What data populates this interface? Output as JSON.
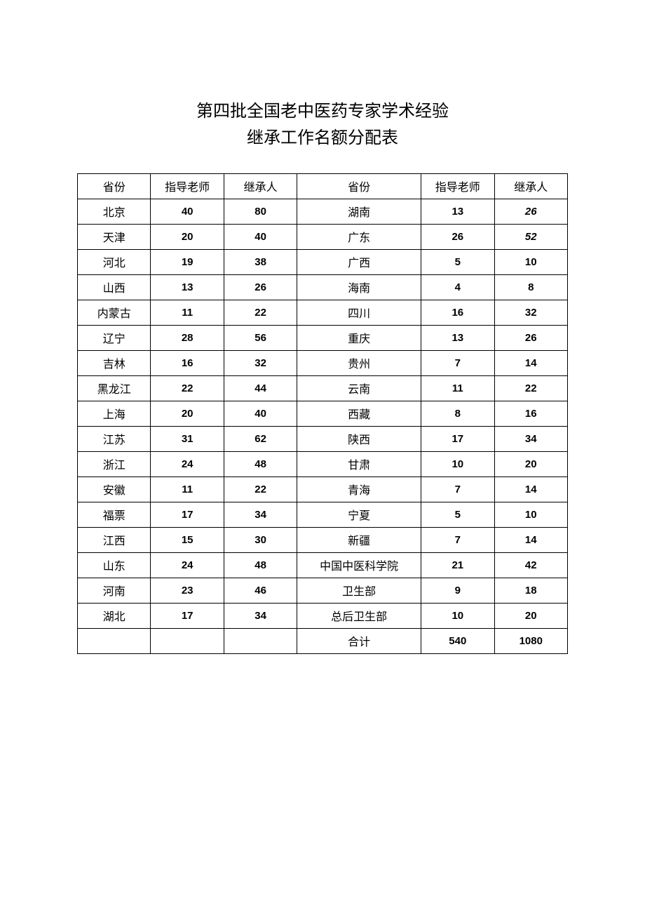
{
  "title": {
    "line1": "第四批全国老中医药专家学术经验",
    "line2": "继承工作名额分配表"
  },
  "headers": {
    "province": "省份",
    "advisor": "指导老师",
    "successor": "继承人"
  },
  "rows": [
    {
      "p1": "北京",
      "a1": "40",
      "s1": "80",
      "p2": "湖南",
      "a2": "13",
      "s2": "26",
      "s2_italic": true
    },
    {
      "p1": "天津",
      "a1": "20",
      "s1": "40",
      "p2": "广东",
      "a2": "26",
      "s2": "52",
      "s2_italic": true
    },
    {
      "p1": "河北",
      "a1": "19",
      "s1": "38",
      "p2": "广西",
      "a2": "5",
      "s2": "10"
    },
    {
      "p1": "山西",
      "a1": "13",
      "s1": "26",
      "p2": "海南",
      "a2": "4",
      "s2": "8"
    },
    {
      "p1": "内蒙古",
      "a1": "11",
      "s1": "22",
      "p2": "四川",
      "a2": "16",
      "s2": "32"
    },
    {
      "p1": "辽宁",
      "a1": "28",
      "s1": "56",
      "p2": "重庆",
      "a2": "13",
      "s2": "26"
    },
    {
      "p1": "吉林",
      "a1": "16",
      "s1": "32",
      "p2": "贵州",
      "a2": "7",
      "s2": "14"
    },
    {
      "p1": "黑龙江",
      "a1": "22",
      "s1": "44",
      "p2": "云南",
      "a2": "11",
      "s2": "22"
    },
    {
      "p1": "上海",
      "a1": "20",
      "s1": "40",
      "p2": "西藏",
      "a2": "8",
      "s2": "16"
    },
    {
      "p1": "江苏",
      "a1": "31",
      "s1": "62",
      "p2": "陕西",
      "a2": "17",
      "s2": "34"
    },
    {
      "p1": "浙江",
      "a1": "24",
      "s1": "48",
      "p2": "甘肃",
      "a2": "10",
      "s2": "20"
    },
    {
      "p1": "安徽",
      "a1": "11",
      "s1": "22",
      "p2": "青海",
      "a2": "7",
      "s2": "14"
    },
    {
      "p1": "福票",
      "a1": "17",
      "s1": "34",
      "p2": "宁夏",
      "a2": "5",
      "s2": "10"
    },
    {
      "p1": "江西",
      "a1": "15",
      "s1": "30",
      "p2": "新疆",
      "a2": "7",
      "s2": "14"
    },
    {
      "p1": "山东",
      "a1": "24",
      "s1": "48",
      "p2": "中国中医科学院",
      "a2": "21",
      "s2": "42"
    },
    {
      "p1": "河南",
      "a1": "23",
      "s1": "46",
      "p2": "卫生部",
      "a2": "9",
      "s2": "18"
    },
    {
      "p1": "湖北",
      "a1": "17",
      "s1": "34",
      "p2": "总后卫生部",
      "a2": "10",
      "s2": "20"
    },
    {
      "p1": "",
      "a1": "",
      "s1": "",
      "p2": "合计",
      "a2": "540",
      "s2": "1080"
    }
  ]
}
